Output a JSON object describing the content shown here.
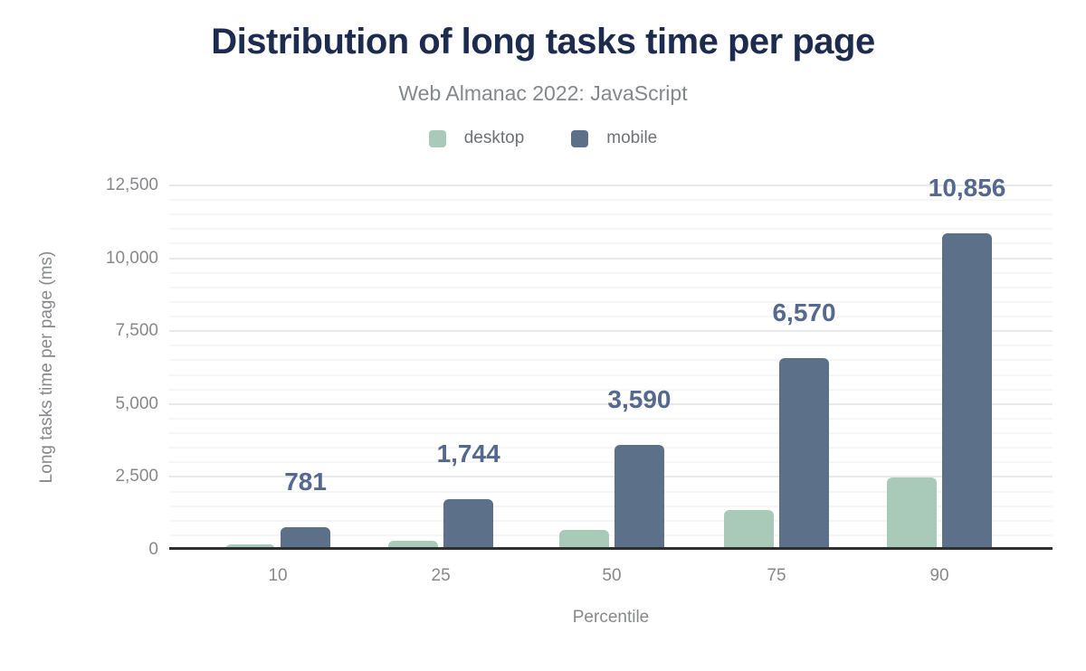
{
  "chart_data": {
    "type": "bar",
    "title": "Distribution of long tasks time per page",
    "subtitle": "Web Almanac 2022: JavaScript",
    "xlabel": "Percentile",
    "ylabel": "Long tasks time per page (ms)",
    "categories": [
      "10",
      "25",
      "50",
      "75",
      "90"
    ],
    "series": [
      {
        "name": "desktop",
        "color": "#a9c9b9",
        "values": [
          175,
          325,
          670,
          1375,
          2480
        ],
        "labels": [
          "",
          "",
          "",
          "",
          ""
        ]
      },
      {
        "name": "mobile",
        "color": "#5d7089",
        "values": [
          781,
          1744,
          3590,
          6570,
          10856
        ],
        "labels": [
          "781",
          "1,744",
          "3,590",
          "6,570",
          "10,856"
        ]
      }
    ],
    "ylim": [
      0,
      12500
    ],
    "ytick_step": 2500,
    "yminor_step": 500,
    "yticks": [
      "0",
      "2,500",
      "5,000",
      "7,500",
      "10,000",
      "12,500"
    ],
    "grid": "horizontal-major-and-minor",
    "legend_position": "top-center",
    "colors": {
      "title": "#1d2b4e",
      "subtitle": "#84878c",
      "axis_text": "#86888b",
      "legend_text": "#6e7277",
      "data_label": "#55688e",
      "baseline": "#2f2f2f",
      "grid_major": "#e9e9e9",
      "grid_minor": "#f6f6f6",
      "desktop_bar": "#a9c9b9",
      "mobile_bar": "#5d7089"
    }
  }
}
